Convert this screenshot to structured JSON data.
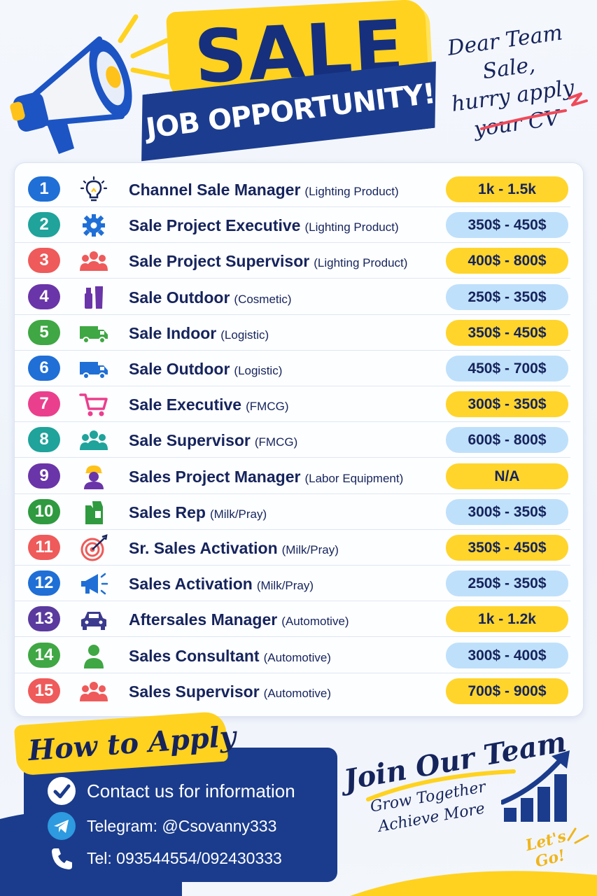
{
  "header": {
    "sale": "SALE",
    "job_opportunity": "JOB OPPORTUNITY!",
    "note_line1": "Dear Team Sale,",
    "note_line2": "hurry apply",
    "note_line3": "your CV"
  },
  "jobs": [
    {
      "num": "1",
      "title": "Channel Sale Manager",
      "category": "(Lighting Product)",
      "salary": "1k - 1.5k",
      "num_color": "#1f6fd6",
      "icon": "lightbulb-icon",
      "salary_style": "yellow"
    },
    {
      "num": "2",
      "title": "Sale Project Executive",
      "category": "(Lighting Product)",
      "salary": "350$ - 450$",
      "num_color": "#1fa39b",
      "icon": "gear-icon",
      "salary_style": "blue"
    },
    {
      "num": "3",
      "title": "Sale Project Supervisor",
      "category": "(Lighting Product)",
      "salary": "400$ - 800$",
      "num_color": "#ef5a5a",
      "icon": "team-icon",
      "salary_style": "yellow"
    },
    {
      "num": "4",
      "title": "Sale Outdoor",
      "category": "(Cosmetic)",
      "salary": "250$ - 350$",
      "num_color": "#6a35a8",
      "icon": "cosmetics-icon",
      "salary_style": "blue"
    },
    {
      "num": "5",
      "title": "Sale Indoor",
      "category": "(Logistic)",
      "salary": "350$ - 450$",
      "num_color": "#3fa743",
      "icon": "truck-icon",
      "salary_style": "yellow"
    },
    {
      "num": "6",
      "title": "Sale Outdoor",
      "category": "(Logistic)",
      "salary": "450$ - 700$",
      "num_color": "#1f6fd6",
      "icon": "truck-icon",
      "salary_style": "blue"
    },
    {
      "num": "7",
      "title": "Sale Executive",
      "category": "(FMCG)",
      "salary": "300$ - 350$",
      "num_color": "#ea3f8d",
      "icon": "cart-icon",
      "salary_style": "yellow"
    },
    {
      "num": "8",
      "title": "Sale Supervisor",
      "category": "(FMCG)",
      "salary": "600$ - 800$",
      "num_color": "#1fa39b",
      "icon": "team-icon",
      "salary_style": "blue"
    },
    {
      "num": "9",
      "title": "Sales Project Manager",
      "category": "(Labor Equipment)",
      "salary": "N/A",
      "num_color": "#6a35a8",
      "icon": "worker-helmet-icon",
      "salary_style": "yellow"
    },
    {
      "num": "10",
      "title": "Sales Rep",
      "category": "(Milk/Pray)",
      "salary": "300$ - 350$",
      "num_color": "#2f9a3f",
      "icon": "milk-carton-icon",
      "salary_style": "blue"
    },
    {
      "num": "11",
      "title": "Sr. Sales Activation",
      "category": "(Milk/Pray)",
      "salary": "350$ - 450$",
      "num_color": "#ef5a5a",
      "icon": "target-icon",
      "salary_style": "yellow"
    },
    {
      "num": "12",
      "title": "Sales Activation",
      "category": "(Milk/Pray)",
      "salary": "250$ - 350$",
      "num_color": "#1f6fd6",
      "icon": "megaphone-icon",
      "salary_style": "blue"
    },
    {
      "num": "13",
      "title": "Aftersales Manager",
      "category": "(Automotive)",
      "salary": "1k - 1.2k",
      "num_color": "#5a3a9e",
      "icon": "car-icon",
      "salary_style": "yellow"
    },
    {
      "num": "14",
      "title": "Sales Consultant",
      "category": "(Automotive)",
      "salary": "300$ - 400$",
      "num_color": "#3fa743",
      "icon": "person-icon",
      "salary_style": "blue"
    },
    {
      "num": "15",
      "title": "Sales Supervisor",
      "category": "(Automotive)",
      "salary": "700$ - 900$",
      "num_color": "#ef5a5a",
      "icon": "team-icon",
      "salary_style": "yellow"
    }
  ],
  "apply": {
    "title": "How to Apply",
    "contacts": [
      {
        "text": "Contact us for information",
        "icon": "check-icon"
      },
      {
        "text": "Telegram: @Csovanny333",
        "icon": "telegram-icon"
      },
      {
        "text": "Tel: 093544554/092430333",
        "icon": "phone-icon"
      }
    ]
  },
  "join": {
    "title": "Join Our Team",
    "line1": "Grow Together",
    "line2": "Achieve More",
    "lets_go_1": "Let's",
    "lets_go_2": "Go!"
  },
  "colors": {
    "navy": "#16245c",
    "ribbon_blue": "#1c3d8f",
    "yellow": "#ffd21f",
    "salary_yellow": "#ffd52c",
    "salary_blue": "#bfe0fb"
  }
}
